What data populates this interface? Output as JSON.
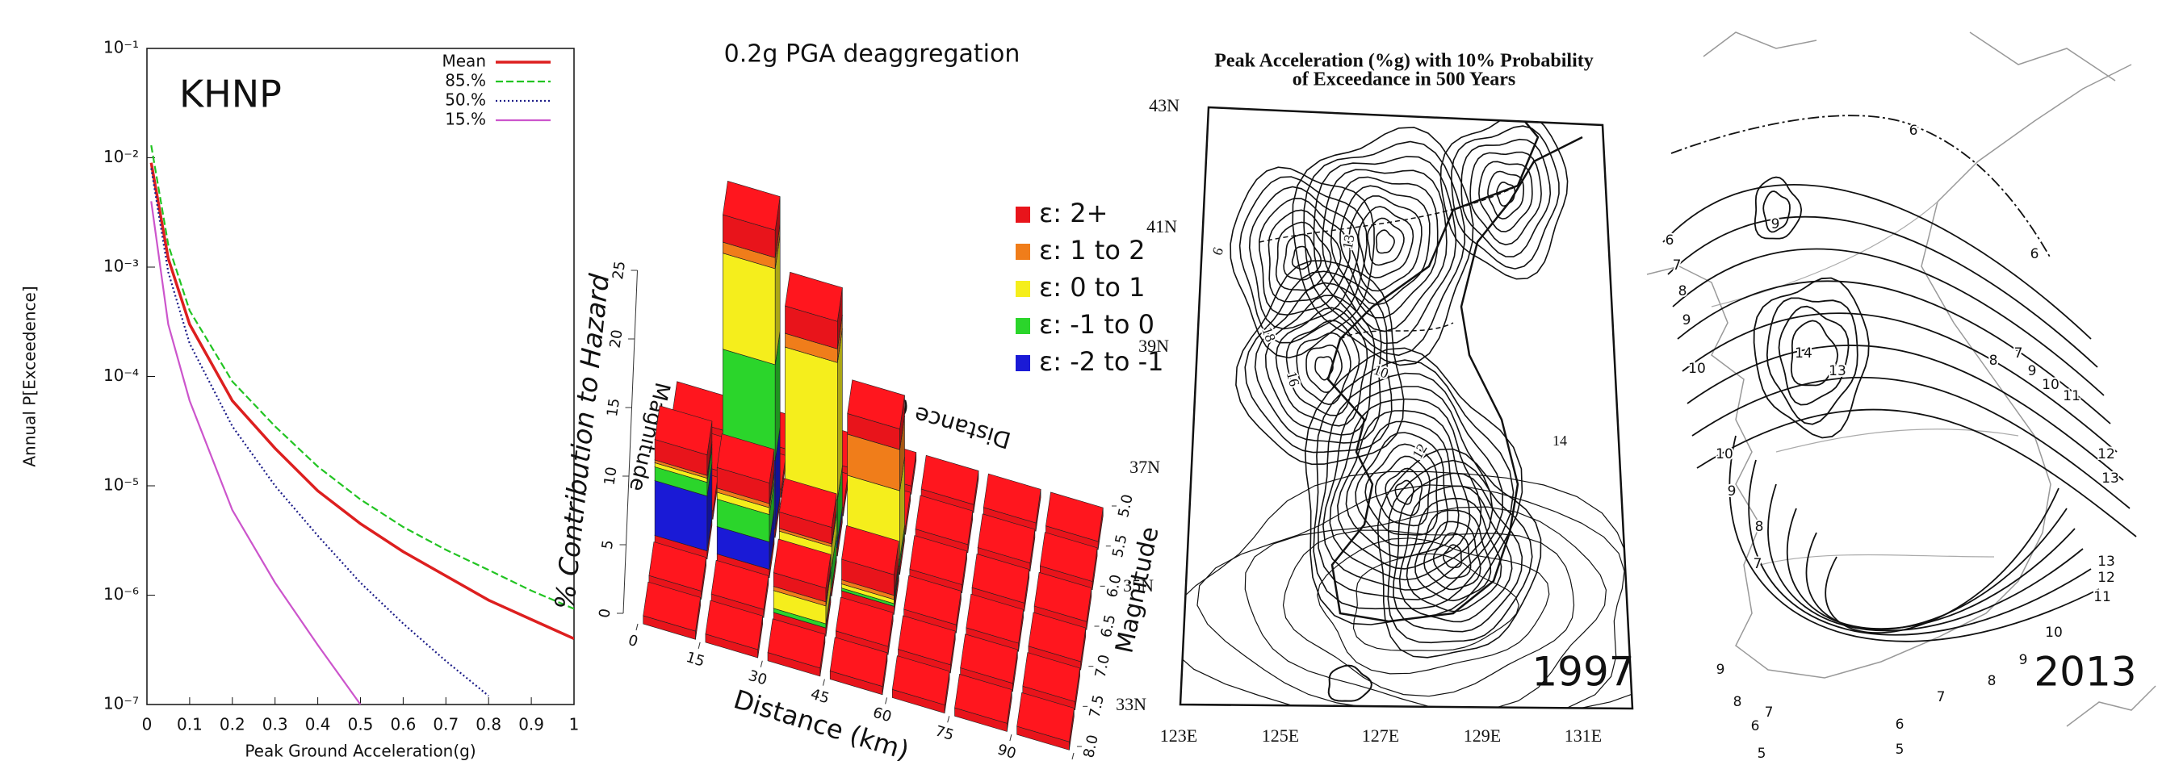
{
  "chart_data": [
    {
      "type": "line",
      "annotation": "KHNP",
      "xlabel": "Peak Ground Acceleration(g)",
      "ylabel": "Annual P[Exceedence]",
      "x": [
        0.01,
        0.05,
        0.1,
        0.2,
        0.3,
        0.4,
        0.5,
        0.6,
        0.7,
        0.8,
        0.9,
        1.0
      ],
      "series": [
        {
          "name": "Mean",
          "color": "#dd1f1f",
          "dash": "solid",
          "values": [
            0.009,
            0.0012,
            0.0003,
            6e-05,
            2.2e-05,
            9e-06,
            4.5e-06,
            2.5e-06,
            1.5e-06,
            9e-07,
            6e-07,
            4e-07
          ]
        },
        {
          "name": "85.%",
          "color": "#22c422",
          "dash": "dashed",
          "values": [
            0.013,
            0.0016,
            0.0004,
            9e-05,
            3.5e-05,
            1.5e-05,
            7.5e-06,
            4.2e-06,
            2.6e-06,
            1.7e-06,
            1.1e-06,
            7.5e-07
          ]
        },
        {
          "name": "50.%",
          "color": "#1c1c88",
          "dash": "dotted",
          "values": [
            0.008,
            0.0009,
            0.0002,
            3.5e-05,
            1e-05,
            3.5e-06,
            1.3e-06,
            5.5e-07,
            2.5e-07,
            1.2e-07,
            null,
            null
          ]
        },
        {
          "name": "15.%",
          "color": "#cc55cc",
          "dash": "solid",
          "values": [
            0.004,
            0.0003,
            6e-05,
            6e-06,
            1.3e-06,
            3.5e-07,
            1e-07,
            null,
            null,
            null,
            null,
            null
          ]
        }
      ],
      "xlim": [
        0,
        1
      ],
      "ylim": [
        1e-07,
        0.1
      ],
      "log_y": true,
      "xticks": [
        0,
        0.1,
        0.2,
        0.3,
        0.4,
        0.5,
        0.6,
        0.7,
        0.8,
        0.9,
        1
      ],
      "yticks": [
        {
          "value": 1e-07,
          "label": "10⁻⁷"
        },
        {
          "value": 1e-06,
          "label": "10⁻⁶"
        },
        {
          "value": 1e-05,
          "label": "10⁻⁵"
        },
        {
          "value": 0.0001,
          "label": "10⁻⁴"
        },
        {
          "value": 0.001,
          "label": "10⁻³"
        },
        {
          "value": 0.01,
          "label": "10⁻²"
        },
        {
          "value": 0.1,
          "label": "10⁻¹"
        }
      ],
      "legend": "upper right"
    },
    {
      "type": "bar3d",
      "title": "0.2g PGA deaggregation",
      "zlabel": "% Contribution to Hazard",
      "xlabel": "Distance (km)",
      "ylabel": "Magnitude",
      "bar_distance": [
        15,
        30,
        45,
        0,
        15,
        30,
        45,
        30
      ],
      "bar_magnitude": [
        6.0,
        6.0,
        6.0,
        6.5,
        6.5,
        6.5,
        6.5,
        7.0
      ],
      "series": [
        {
          "name": "ε: 2+",
          "color": "#e8141b",
          "values": [
            2,
            2,
            1.5,
            1.5,
            1.5,
            1.2,
            1.5,
            1
          ]
        },
        {
          "name": "ε: 1 to 2",
          "color": "#f07d1a",
          "values": [
            0.8,
            1,
            3,
            0.2,
            0.3,
            0.2,
            0.3,
            0.3
          ]
        },
        {
          "name": "ε: 0 to 1",
          "color": "#f5ee1c",
          "values": [
            7,
            10,
            5,
            0.3,
            0.5,
            1.5,
            0.3,
            1.3
          ]
        },
        {
          "name": "ε: -1 to 0",
          "color": "#2bd52b",
          "values": [
            7,
            3,
            0.5,
            1,
            2,
            1.5,
            0.2,
            0.3
          ]
        },
        {
          "name": "ε: -2 to -1",
          "color": "#1a1ad6",
          "values": [
            5,
            0.5,
            0,
            4,
            2,
            0,
            0,
            0
          ]
        }
      ],
      "xlim": [
        0,
        105
      ],
      "ylim": [
        5,
        8
      ],
      "zlim": [
        0,
        25
      ],
      "xticks": [
        0,
        15,
        30,
        45,
        60,
        75,
        90,
        105
      ],
      "yticks": [
        {
          "value": 5,
          "label": "5.0"
        },
        5.5,
        {
          "value": 6,
          "label": "6.0"
        },
        6.5,
        {
          "value": 7,
          "label": "7.0"
        },
        7.5,
        {
          "value": 8,
          "label": "8.0"
        }
      ],
      "zticks": [
        0,
        5,
        10,
        15,
        20,
        25
      ]
    }
  ],
  "maps": [
    {
      "title_lines": [
        "Peak Acceleration (%g) with 10% Probability",
        "of Exceedance in 500 Years"
      ],
      "year": "1997",
      "lat_labels": [
        "43N",
        "41N",
        "39N",
        "37N",
        "35N",
        "33N"
      ],
      "lon_labels": [
        "123E",
        "125E",
        "127E",
        "129E",
        "131E"
      ],
      "contour_labels": [
        "6",
        "13",
        "18",
        "16",
        "10",
        "12",
        "14"
      ]
    },
    {
      "year": "2013",
      "contour_labels": [
        "6",
        "9",
        "6",
        "7",
        "8",
        "9",
        "6",
        "10",
        "14",
        "13",
        "8",
        "7",
        "9",
        "10",
        "11",
        "10",
        "9",
        "8",
        "7",
        "12",
        "13",
        "13",
        "12",
        "11",
        "10",
        "9",
        "8",
        "7",
        "6",
        "5",
        "9",
        "8",
        "7",
        "6",
        "5"
      ]
    }
  ]
}
